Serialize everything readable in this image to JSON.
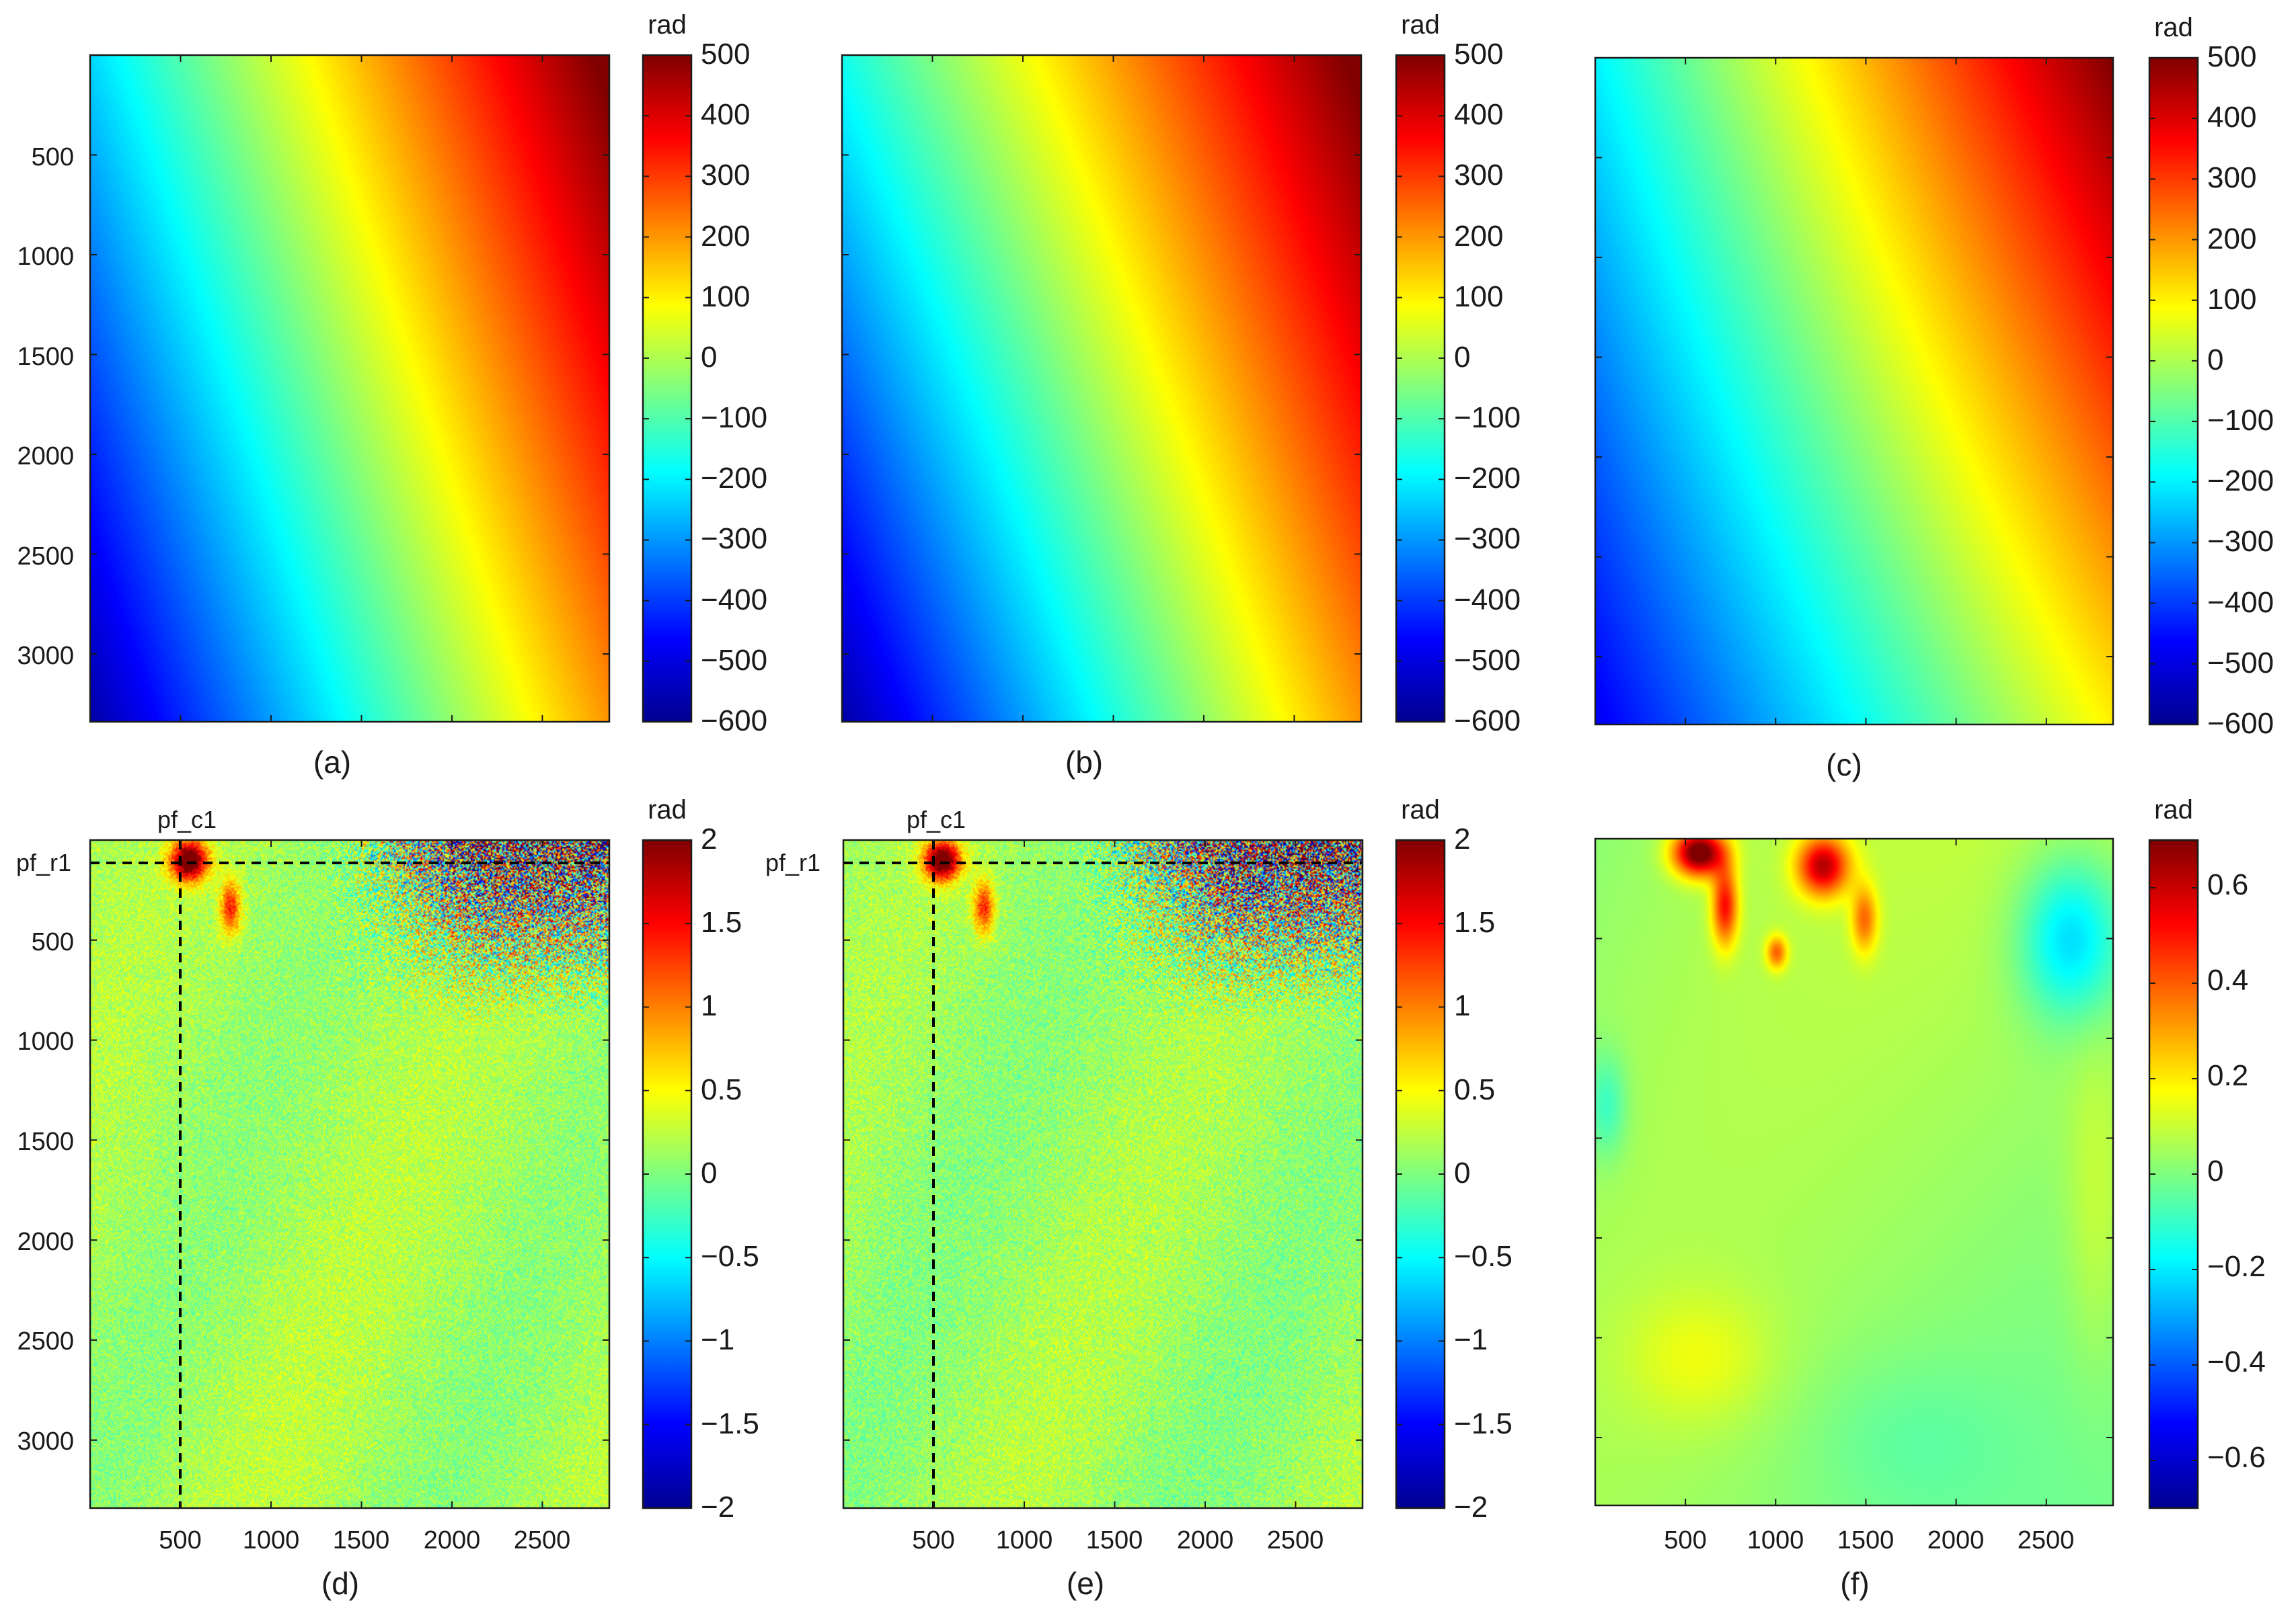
{
  "chart_data": [
    {
      "panel": "a",
      "type": "heatmap",
      "caption": "(a)",
      "colorbar_label": "rad",
      "colorbar_ticks": [
        "500",
        "400",
        "300",
        "200",
        "100",
        "0",
        "−100",
        "−200",
        "−300",
        "−400",
        "−500",
        "−600"
      ],
      "colorbar_tick_values": [
        500,
        400,
        300,
        200,
        100,
        0,
        -100,
        -200,
        -300,
        -400,
        -500,
        -600
      ],
      "clim": [
        -600,
        500
      ],
      "y_ticks": [
        "500",
        "1000",
        "1500",
        "2000",
        "2500",
        "3000"
      ],
      "y_tick_values": [
        500,
        1000,
        1500,
        2000,
        2500,
        3000
      ],
      "x_ticks": [],
      "x_tick_values": [
        500,
        1000,
        1500,
        2000,
        2500
      ],
      "xlim": [
        0,
        2870
      ],
      "ylim": [
        0,
        3340
      ],
      "pattern": "linear-ramp",
      "field": {
        "corner_tl": -230,
        "corner_tr": 520,
        "corner_bl": -560,
        "corner_br": 200
      }
    },
    {
      "panel": "b",
      "type": "heatmap",
      "caption": "(b)",
      "colorbar_label": "rad",
      "colorbar_ticks": [
        "500",
        "400",
        "300",
        "200",
        "100",
        "0",
        "−100",
        "−200",
        "−300",
        "−400",
        "−500",
        "−600"
      ],
      "colorbar_tick_values": [
        500,
        400,
        300,
        200,
        100,
        0,
        -100,
        -200,
        -300,
        -400,
        -500,
        -600
      ],
      "clim": [
        -600,
        500
      ],
      "y_ticks": [],
      "y_tick_values": [
        500,
        1000,
        1500,
        2000,
        2500,
        3000
      ],
      "x_ticks": [],
      "x_tick_values": [
        500,
        1000,
        1500,
        2000,
        2500
      ],
      "xlim": [
        0,
        2870
      ],
      "ylim": [
        0,
        3340
      ],
      "pattern": "linear-ramp",
      "field": {
        "corner_tl": -170,
        "corner_tr": 520,
        "corner_bl": -560,
        "corner_br": 200
      }
    },
    {
      "panel": "c",
      "type": "heatmap",
      "caption": "(c)",
      "colorbar_label": "rad",
      "colorbar_ticks": [
        "500",
        "400",
        "300",
        "200",
        "100",
        "0",
        "−100",
        "−200",
        "−300",
        "−400",
        "−500",
        "−600"
      ],
      "colorbar_tick_values": [
        500,
        400,
        300,
        200,
        100,
        0,
        -100,
        -200,
        -300,
        -400,
        -500,
        -600
      ],
      "clim": [
        -600,
        500
      ],
      "y_ticks": [],
      "y_tick_values": [
        500,
        1000,
        1500,
        2000,
        2500,
        3000
      ],
      "x_ticks": [],
      "x_tick_values": [
        500,
        1000,
        1500,
        2000,
        2500
      ],
      "xlim": [
        0,
        2870
      ],
      "ylim": [
        0,
        3340
      ],
      "pattern": "linear-ramp",
      "field": {
        "corner_tl": -200,
        "corner_tr": 500,
        "corner_bl": -480,
        "corner_br": 100
      }
    },
    {
      "panel": "d",
      "type": "heatmap",
      "caption": "(d)",
      "colorbar_label": "rad",
      "colorbar_ticks": [
        "2",
        "1.5",
        "1",
        "0.5",
        "0",
        "−0.5",
        "−1",
        "−1.5",
        "−2"
      ],
      "colorbar_tick_values": [
        2,
        1.5,
        1,
        0.5,
        0,
        -0.5,
        -1,
        -1.5,
        -2
      ],
      "clim": [
        -2,
        2
      ],
      "y_ticks": [
        "500",
        "1000",
        "1500",
        "2000",
        "2500",
        "3000"
      ],
      "y_tick_values": [
        500,
        1000,
        1500,
        2000,
        2500,
        3000
      ],
      "x_ticks": [
        "500",
        "1000",
        "1500",
        "2000",
        "2500"
      ],
      "x_tick_values": [
        500,
        1000,
        1500,
        2000,
        2500
      ],
      "xlim": [
        0,
        2870
      ],
      "ylim": [
        0,
        3340
      ],
      "pattern": "noise-residual",
      "base_value": 0.15,
      "profile_row_label": "pf_r1",
      "profile_row": 110,
      "profile_col_label": "pf_c1",
      "profile_col": 500
    },
    {
      "panel": "e",
      "type": "heatmap",
      "caption": "(e)",
      "colorbar_label": "rad",
      "colorbar_ticks": [
        "2",
        "1.5",
        "1",
        "0.5",
        "0",
        "−0.5",
        "−1",
        "−1.5",
        "−2"
      ],
      "colorbar_tick_values": [
        2,
        1.5,
        1,
        0.5,
        0,
        -0.5,
        -1,
        -1.5,
        -2
      ],
      "clim": [
        -2,
        2
      ],
      "y_ticks": [],
      "y_tick_values": [
        500,
        1000,
        1500,
        2000,
        2500,
        3000
      ],
      "x_ticks": [
        "500",
        "1000",
        "1500",
        "2000",
        "2500"
      ],
      "x_tick_values": [
        500,
        1000,
        1500,
        2000,
        2500
      ],
      "xlim": [
        0,
        2870
      ],
      "ylim": [
        0,
        3340
      ],
      "pattern": "noise-residual",
      "base_value": 0.12,
      "profile_row_label": "pf_r1",
      "profile_row": 110,
      "profile_col_label": "pf_c1",
      "profile_col": 500
    },
    {
      "panel": "f",
      "type": "heatmap",
      "caption": "(f)",
      "colorbar_label": "rad",
      "colorbar_ticks": [
        "0.6",
        "0.4",
        "0.2",
        "0",
        "−0.2",
        "−0.4",
        "−0.6"
      ],
      "colorbar_tick_values": [
        0.6,
        0.4,
        0.2,
        0,
        -0.2,
        -0.4,
        -0.6
      ],
      "clim": [
        -0.7,
        0.7
      ],
      "y_ticks": [],
      "y_tick_values": [
        500,
        1000,
        1500,
        2000,
        2500,
        3000
      ],
      "x_ticks": [
        "500",
        "1000",
        "1500",
        "2000",
        "2500"
      ],
      "x_tick_values": [
        500,
        1000,
        1500,
        2000,
        2500
      ],
      "xlim": [
        0,
        2870
      ],
      "ylim": [
        0,
        3340
      ],
      "pattern": "smooth-field",
      "base_value": 0.02
    }
  ],
  "colors": {
    "axis": "#1a1a1a",
    "background": "#ffffff",
    "profile_line": "#000000"
  }
}
